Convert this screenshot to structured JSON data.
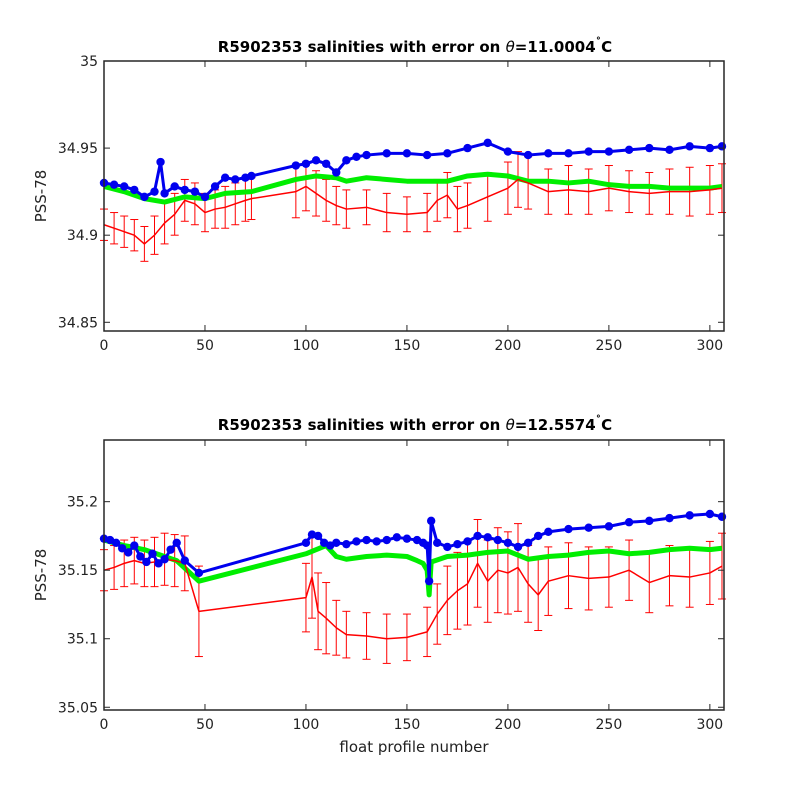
{
  "chart_data": [
    {
      "type": "line",
      "title": "R5902353 salinities with error on θ=11.0004°C",
      "title_parts": {
        "prefix": "R5902353 salinities with error on ",
        "theta": "θ",
        "value": "=11.0004",
        "degree": "˚",
        "unit": "C"
      },
      "xlabel": "",
      "ylabel": "PSS-78",
      "xlim": [
        0,
        307
      ],
      "ylim": [
        34.845,
        35.0
      ],
      "xticks": [
        0,
        50,
        100,
        150,
        200,
        250,
        300
      ],
      "xtick_labels": [
        "0",
        "50",
        "100",
        "150",
        "200",
        "250",
        "300"
      ],
      "yticks": [
        34.85,
        34.9,
        34.95,
        35.0
      ],
      "ytick_labels": [
        "34.85",
        "34.9",
        "34.95",
        "35"
      ],
      "grid": false,
      "colors": {
        "mapped": "#ff0000",
        "error": "#ff0000",
        "climatology": "#00ee00",
        "float": "#0000ee"
      },
      "series": [
        {
          "role": "float",
          "x": [
            0,
            5,
            10,
            15,
            20,
            25,
            28,
            30,
            35,
            40,
            45,
            50,
            55,
            60,
            65,
            70,
            73,
            95,
            100,
            105,
            110,
            115,
            120,
            125,
            130,
            140,
            150,
            160,
            170,
            180,
            190,
            200,
            210,
            220,
            230,
            240,
            250,
            260,
            270,
            280,
            290,
            300,
            306
          ],
          "y": [
            34.93,
            34.929,
            34.928,
            34.926,
            34.922,
            34.925,
            34.942,
            34.924,
            34.928,
            34.926,
            34.925,
            34.922,
            34.928,
            34.933,
            34.932,
            34.933,
            34.934,
            34.94,
            34.941,
            34.943,
            34.941,
            34.936,
            34.943,
            34.945,
            34.946,
            34.947,
            34.947,
            34.946,
            34.947,
            34.95,
            34.953,
            34.948,
            34.946,
            34.947,
            34.947,
            34.948,
            34.948,
            34.949,
            34.95,
            34.949,
            34.951,
            34.95,
            34.951
          ]
        },
        {
          "role": "climatology",
          "x": [
            0,
            10,
            20,
            30,
            40,
            50,
            60,
            73,
            95,
            105,
            115,
            120,
            130,
            140,
            150,
            160,
            170,
            180,
            190,
            200,
            210,
            220,
            230,
            240,
            250,
            260,
            270,
            280,
            290,
            300,
            306
          ],
          "y": [
            34.928,
            34.925,
            34.921,
            34.919,
            34.922,
            34.921,
            34.924,
            34.925,
            34.932,
            34.934,
            34.933,
            34.931,
            34.933,
            34.932,
            34.931,
            34.931,
            34.931,
            34.934,
            34.935,
            34.934,
            34.931,
            34.931,
            34.93,
            34.931,
            34.929,
            34.928,
            34.928,
            34.927,
            34.927,
            34.927,
            34.928
          ]
        },
        {
          "role": "mapped",
          "x": [
            0,
            5,
            10,
            15,
            20,
            25,
            30,
            35,
            40,
            45,
            50,
            55,
            60,
            65,
            70,
            73,
            95,
            100,
            105,
            110,
            115,
            120,
            130,
            140,
            150,
            160,
            165,
            170,
            175,
            180,
            190,
            200,
            205,
            210,
            220,
            230,
            240,
            250,
            260,
            270,
            280,
            290,
            300,
            306
          ],
          "y": [
            34.906,
            34.904,
            34.902,
            34.9,
            34.895,
            34.9,
            34.907,
            34.912,
            34.92,
            34.918,
            34.913,
            34.915,
            34.916,
            34.918,
            34.92,
            34.921,
            34.925,
            34.928,
            34.924,
            34.92,
            34.917,
            34.915,
            34.916,
            34.913,
            34.912,
            34.913,
            34.92,
            34.923,
            34.915,
            34.917,
            34.922,
            34.927,
            34.932,
            34.93,
            34.925,
            34.926,
            34.925,
            34.927,
            34.925,
            34.924,
            34.925,
            34.925,
            34.926,
            34.927
          ],
          "error": [
            0.009,
            0.009,
            0.009,
            0.009,
            0.01,
            0.011,
            0.012,
            0.012,
            0.012,
            0.012,
            0.011,
            0.011,
            0.012,
            0.012,
            0.012,
            0.012,
            0.015,
            0.014,
            0.013,
            0.012,
            0.011,
            0.011,
            0.01,
            0.011,
            0.01,
            0.011,
            0.012,
            0.013,
            0.013,
            0.013,
            0.014,
            0.015,
            0.016,
            0.015,
            0.013,
            0.014,
            0.013,
            0.013,
            0.012,
            0.012,
            0.013,
            0.014,
            0.014,
            0.014
          ]
        }
      ]
    },
    {
      "type": "line",
      "title": "R5902353 salinities with error on θ=12.5574°C",
      "title_parts": {
        "prefix": "R5902353 salinities with error on ",
        "theta": "θ",
        "value": "=12.5574",
        "degree": "˚",
        "unit": "C"
      },
      "xlabel": "float profile number",
      "ylabel": "PSS-78",
      "xlim": [
        0,
        307
      ],
      "ylim": [
        35.048,
        35.245
      ],
      "xticks": [
        0,
        50,
        100,
        150,
        200,
        250,
        300
      ],
      "xtick_labels": [
        "0",
        "50",
        "100",
        "150",
        "200",
        "250",
        "300"
      ],
      "yticks": [
        35.05,
        35.1,
        35.15,
        35.2
      ],
      "ytick_labels": [
        "35.05",
        "35.1",
        "35.15",
        "35.2"
      ],
      "grid": false,
      "colors": {
        "mapped": "#ff0000",
        "error": "#ff0000",
        "climatology": "#00ee00",
        "float": "#0000ee"
      },
      "series": [
        {
          "role": "float",
          "x": [
            0,
            3,
            6,
            9,
            12,
            15,
            18,
            21,
            24,
            27,
            30,
            33,
            36,
            40,
            47,
            100,
            103,
            106,
            109,
            112,
            115,
            120,
            125,
            130,
            135,
            140,
            145,
            150,
            155,
            158,
            160,
            161,
            162,
            165,
            170,
            175,
            180,
            185,
            190,
            195,
            200,
            205,
            210,
            215,
            220,
            230,
            240,
            250,
            260,
            270,
            280,
            290,
            300,
            306
          ],
          "y": [
            35.173,
            35.172,
            35.17,
            35.166,
            35.163,
            35.168,
            35.16,
            35.156,
            35.162,
            35.155,
            35.158,
            35.165,
            35.17,
            35.157,
            35.148,
            35.17,
            35.176,
            35.175,
            35.17,
            35.168,
            35.17,
            35.169,
            35.171,
            35.172,
            35.171,
            35.172,
            35.174,
            35.173,
            35.172,
            35.17,
            35.168,
            35.142,
            35.186,
            35.17,
            35.167,
            35.169,
            35.171,
            35.175,
            35.174,
            35.172,
            35.17,
            35.167,
            35.17,
            35.175,
            35.178,
            35.18,
            35.181,
            35.182,
            35.185,
            35.186,
            35.188,
            35.19,
            35.191,
            35.189
          ]
        },
        {
          "role": "climatology",
          "x": [
            0,
            10,
            20,
            30,
            36,
            47,
            100,
            105,
            110,
            115,
            120,
            130,
            140,
            150,
            155,
            158,
            160,
            161,
            162,
            170,
            180,
            190,
            200,
            210,
            220,
            230,
            240,
            250,
            260,
            270,
            280,
            290,
            300,
            306
          ],
          "y": [
            35.172,
            35.168,
            35.165,
            35.16,
            35.157,
            35.142,
            35.162,
            35.165,
            35.168,
            35.16,
            35.158,
            35.16,
            35.161,
            35.16,
            35.157,
            35.155,
            35.15,
            35.132,
            35.156,
            35.16,
            35.161,
            35.163,
            35.164,
            35.158,
            35.16,
            35.161,
            35.163,
            35.164,
            35.162,
            35.163,
            35.165,
            35.166,
            35.165,
            35.166
          ]
        },
        {
          "role": "mapped",
          "x": [
            0,
            5,
            10,
            15,
            20,
            25,
            30,
            35,
            40,
            47,
            100,
            103,
            106,
            110,
            115,
            120,
            130,
            140,
            150,
            160,
            165,
            170,
            175,
            180,
            185,
            190,
            195,
            200,
            205,
            210,
            215,
            220,
            230,
            240,
            250,
            260,
            270,
            280,
            290,
            300,
            306
          ],
          "y": [
            35.15,
            35.152,
            35.155,
            35.157,
            35.155,
            35.156,
            35.158,
            35.157,
            35.155,
            35.12,
            35.13,
            35.145,
            35.12,
            35.115,
            35.108,
            35.103,
            35.102,
            35.1,
            35.101,
            35.105,
            35.118,
            35.128,
            35.135,
            35.14,
            35.155,
            35.142,
            35.15,
            35.148,
            35.152,
            35.14,
            35.132,
            35.142,
            35.146,
            35.144,
            35.145,
            35.15,
            35.141,
            35.146,
            35.145,
            35.148,
            35.153
          ],
          "error": [
            0.015,
            0.016,
            0.017,
            0.017,
            0.017,
            0.018,
            0.019,
            0.019,
            0.02,
            0.033,
            0.025,
            0.03,
            0.028,
            0.026,
            0.02,
            0.017,
            0.017,
            0.018,
            0.017,
            0.018,
            0.022,
            0.025,
            0.028,
            0.03,
            0.032,
            0.03,
            0.031,
            0.03,
            0.032,
            0.028,
            0.026,
            0.025,
            0.024,
            0.023,
            0.022,
            0.022,
            0.022,
            0.022,
            0.022,
            0.023,
            0.024
          ]
        }
      ]
    }
  ]
}
